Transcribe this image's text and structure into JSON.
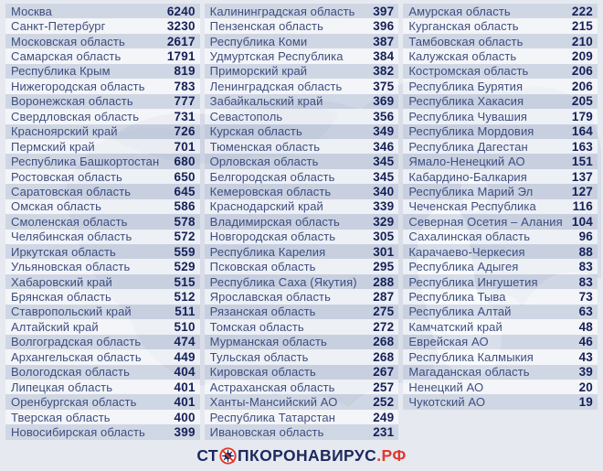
{
  "colors": {
    "brand_navy": "#1d2a5e",
    "brand_red": "#e2392c",
    "region_text": "#3e4e80",
    "value_text": "#152158",
    "background": "#e6e9f0",
    "map_silhouette": "#ccd4e2"
  },
  "footer": {
    "logo_prefix": "СТ",
    "logo_icon": "no-virus-icon",
    "logo_middle": "ПКОРОНАВИРУС",
    "logo_suffix": ".РФ"
  },
  "chart_data": {
    "type": "table",
    "title": "",
    "description": "Values per Russian region, three columns sorted descending",
    "columns": [
      {
        "rows": [
          {
            "region": "Москва",
            "value": "6240"
          },
          {
            "region": "Санкт-Петербург",
            "value": "3230"
          },
          {
            "region": "Московская область",
            "value": "2617"
          },
          {
            "region": "Самарская область",
            "value": "1791"
          },
          {
            "region": "Республика Крым",
            "value": "819"
          },
          {
            "region": "Нижегородская область",
            "value": "783"
          },
          {
            "region": "Воронежская область",
            "value": "777"
          },
          {
            "region": "Свердловская область",
            "value": "731"
          },
          {
            "region": "Красноярский край",
            "value": "726"
          },
          {
            "region": "Пермский край",
            "value": "701"
          },
          {
            "region": "Республика Башкортостан",
            "value": "680"
          },
          {
            "region": "Ростовская область",
            "value": "650"
          },
          {
            "region": "Саратовская область",
            "value": "645"
          },
          {
            "region": "Омская область",
            "value": "586"
          },
          {
            "region": "Смоленская область",
            "value": "578"
          },
          {
            "region": "Челябинская область",
            "value": "572"
          },
          {
            "region": "Иркутская область",
            "value": "559"
          },
          {
            "region": "Ульяновская область",
            "value": "529"
          },
          {
            "region": "Хабаровский край",
            "value": "515"
          },
          {
            "region": "Брянская область",
            "value": "512"
          },
          {
            "region": "Ставропольский край",
            "value": "511"
          },
          {
            "region": "Алтайский край",
            "value": "510"
          },
          {
            "region": "Волгоградская область",
            "value": "474"
          },
          {
            "region": "Архангельская область",
            "value": "449"
          },
          {
            "region": "Вологодская область",
            "value": "404"
          },
          {
            "region": "Липецкая область",
            "value": "401"
          },
          {
            "region": "Оренбургская область",
            "value": "401"
          },
          {
            "region": "Тверская область",
            "value": "400"
          },
          {
            "region": "Новосибирская область",
            "value": "399"
          }
        ]
      },
      {
        "rows": [
          {
            "region": "Калининградская область",
            "value": "397"
          },
          {
            "region": "Пензенская область",
            "value": "396"
          },
          {
            "region": "Республика Коми",
            "value": "387"
          },
          {
            "region": "Удмуртская Республика",
            "value": "384"
          },
          {
            "region": "Приморский край",
            "value": "382"
          },
          {
            "region": "Ленинградская область",
            "value": "375"
          },
          {
            "region": "Забайкальский край",
            "value": "369"
          },
          {
            "region": "Севастополь",
            "value": "356"
          },
          {
            "region": "Курская область",
            "value": "349"
          },
          {
            "region": "Тюменская область",
            "value": "346"
          },
          {
            "region": "Орловская область",
            "value": "345"
          },
          {
            "region": "Белгородская область",
            "value": "345"
          },
          {
            "region": "Кемеровская область",
            "value": "340"
          },
          {
            "region": "Краснодарский край",
            "value": "339"
          },
          {
            "region": "Владимирская область",
            "value": "329"
          },
          {
            "region": "Новгородская область",
            "value": "305"
          },
          {
            "region": "Республика Карелия",
            "value": "301"
          },
          {
            "region": "Псковская область",
            "value": "295"
          },
          {
            "region": "Республика Саха (Якутия)",
            "value": "288"
          },
          {
            "region": "Ярославская область",
            "value": "287"
          },
          {
            "region": "Рязанская область",
            "value": "275"
          },
          {
            "region": "Томская область",
            "value": "272"
          },
          {
            "region": "Мурманская область",
            "value": "268"
          },
          {
            "region": "Тульская область",
            "value": "268"
          },
          {
            "region": "Кировская область",
            "value": "267"
          },
          {
            "region": "Астраханская область",
            "value": "257"
          },
          {
            "region": "Ханты-Мансийский АО",
            "value": "252"
          },
          {
            "region": "Республика Татарстан",
            "value": "249"
          },
          {
            "region": "Ивановская область",
            "value": "231"
          }
        ]
      },
      {
        "rows": [
          {
            "region": "Амурская область",
            "value": "222"
          },
          {
            "region": "Курганская область",
            "value": "215"
          },
          {
            "region": "Тамбовская область",
            "value": "210"
          },
          {
            "region": "Калужская область",
            "value": "209"
          },
          {
            "region": "Костромская область",
            "value": "206"
          },
          {
            "region": "Республика Бурятия",
            "value": "206"
          },
          {
            "region": "Республика Хакасия",
            "value": "205"
          },
          {
            "region": "Республика Чувашия",
            "value": "179"
          },
          {
            "region": "Республика Мордовия",
            "value": "164"
          },
          {
            "region": "Республика Дагестан",
            "value": "163"
          },
          {
            "region": "Ямало-Ненецкий АО",
            "value": "151"
          },
          {
            "region": "Кабардино-Балкария",
            "value": "137"
          },
          {
            "region": "Республика Марий Эл",
            "value": "127"
          },
          {
            "region": "Чеченская Республика",
            "value": "116"
          },
          {
            "region": "Северная Осетия – Алания",
            "value": "104"
          },
          {
            "region": "Сахалинская область",
            "value": "96"
          },
          {
            "region": "Карачаево-Черкесия",
            "value": "88"
          },
          {
            "region": "Республика Адыгея",
            "value": "83"
          },
          {
            "region": "Республика Ингушетия",
            "value": "83"
          },
          {
            "region": "Республика Тыва",
            "value": "73"
          },
          {
            "region": "Республика Алтай",
            "value": "63"
          },
          {
            "region": "Камчатский край",
            "value": "48"
          },
          {
            "region": "Еврейская АО",
            "value": "46"
          },
          {
            "region": "Республика Калмыкия",
            "value": "43"
          },
          {
            "region": "Магаданская область",
            "value": "39"
          },
          {
            "region": "Ненецкий АО",
            "value": "20"
          },
          {
            "region": "Чукотский АО",
            "value": "19"
          }
        ]
      }
    ]
  }
}
